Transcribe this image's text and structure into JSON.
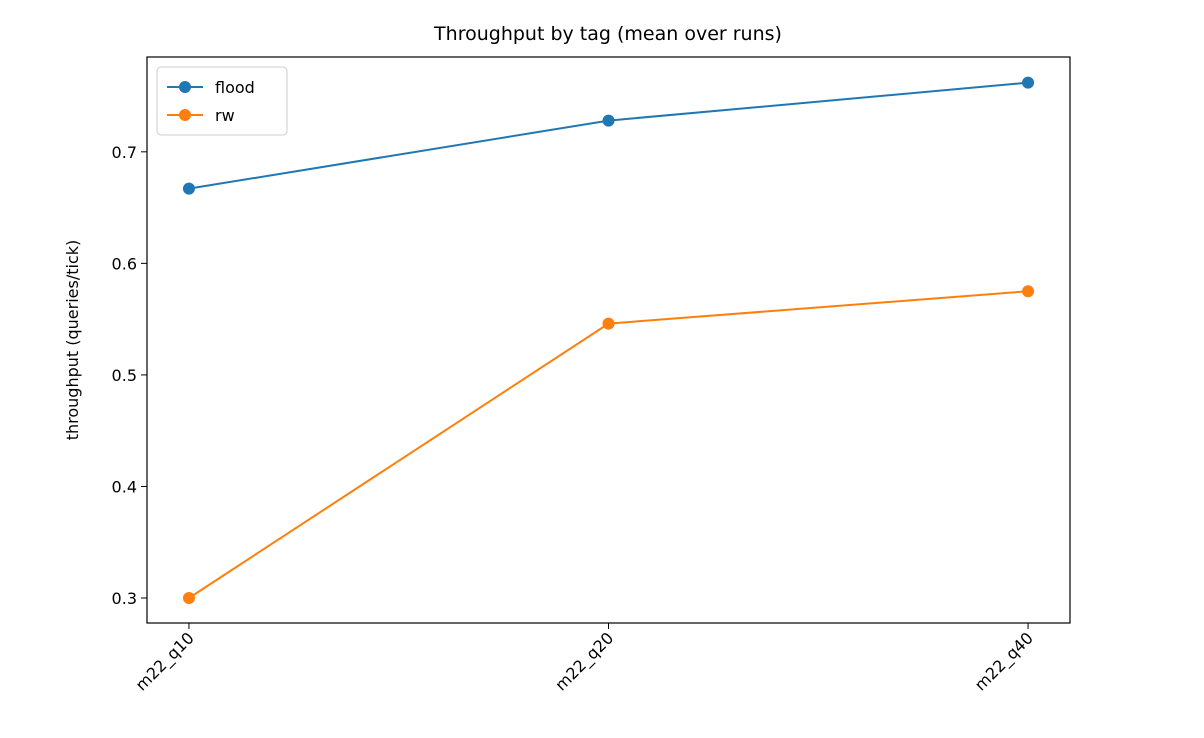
{
  "chart_data": {
    "type": "line",
    "title": "Throughput by tag (mean over runs)",
    "y_label": "throughput (queries/tick)",
    "categories": [
      "m22_q10",
      "m22_q20",
      "m22_q40"
    ],
    "series": [
      {
        "name": "flood",
        "color": "#1f77b4",
        "values": [
          0.667,
          0.728,
          0.762
        ]
      },
      {
        "name": "rw",
        "color": "#ff7f0e",
        "values": [
          0.3,
          0.546,
          0.575
        ]
      }
    ],
    "ylim": [
      0.2776,
      0.785
    ],
    "yticks": [
      0.3,
      0.4,
      0.5,
      0.6,
      0.7
    ],
    "grid": false,
    "legend": "upper-left"
  }
}
